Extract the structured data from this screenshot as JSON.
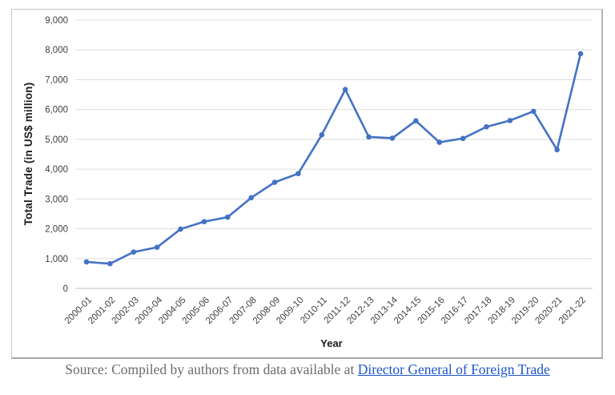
{
  "window": {
    "background": "#ffffff"
  },
  "chart_data": {
    "type": "line",
    "title": "",
    "xlabel": "Year",
    "ylabel": "Total Trade (in US$ million)",
    "categories": [
      "2000-01",
      "2001-02",
      "2002-03",
      "2003-04",
      "2004-05",
      "2005-06",
      "2006-07",
      "2007-08",
      "2008-09",
      "2009-10",
      "2010-11",
      "2011-12",
      "2012-13",
      "2013-14",
      "2014-15",
      "2015-16",
      "2016-17",
      "2017-18",
      "2018-19",
      "2019-20",
      "2020-21",
      "2021-22"
    ],
    "values": [
      890,
      830,
      1220,
      1380,
      1990,
      2240,
      2390,
      3040,
      3560,
      3850,
      5150,
      6670,
      5080,
      5040,
      5620,
      4900,
      5030,
      5420,
      5630,
      5940,
      4650,
      7870
    ],
    "ylim": [
      0,
      9000
    ],
    "ytick_step": 1000,
    "ytick_labels": [
      "0",
      "1,000",
      "2,000",
      "3,000",
      "4,000",
      "5,000",
      "6,000",
      "7,000",
      "8,000",
      "9,000"
    ],
    "grid": "horizontal",
    "legend": "none",
    "line_color": "#4472C4",
    "marker": "circle",
    "marker_color": "#4472C4",
    "gridline_color": "#DEDEDE",
    "axis_line_color": "#C0C0C0",
    "tick_label_color": "#3F3F3F"
  },
  "caption": {
    "prefix": "Source: Compiled by authors from data available at ",
    "link_text": "Director General of Foreign Trade",
    "text_color": "#6B6B6B",
    "link_color": "#1C55CB"
  }
}
